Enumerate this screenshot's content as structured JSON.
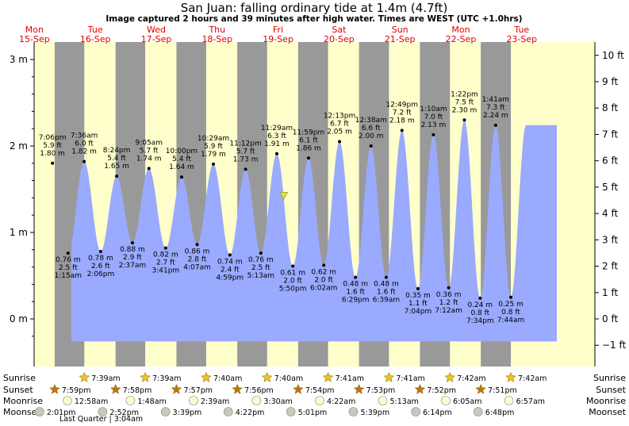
{
  "title": "San Juan: falling  ordinary tide at 1.4m (4.7ft)",
  "subtitle": "Image captured 2 hours and 39 minutes after high water. Times are WEST (UTC +1.0hrs)",
  "days": [
    {
      "dow": "Mon",
      "date": "15-Sep"
    },
    {
      "dow": "Tue",
      "date": "16-Sep"
    },
    {
      "dow": "Wed",
      "date": "17-Sep"
    },
    {
      "dow": "Thu",
      "date": "18-Sep"
    },
    {
      "dow": "Fri",
      "date": "19-Sep"
    },
    {
      "dow": "Sat",
      "date": "20-Sep"
    },
    {
      "dow": "Sun",
      "date": "21-Sep"
    },
    {
      "dow": "Mon",
      "date": "22-Sep"
    },
    {
      "dow": "Tue",
      "date": "23-Sep"
    }
  ],
  "colors": {
    "day_bg": "#ffffcc",
    "night_bg": "#999999",
    "water": "#99aaff",
    "day_label": "#e00000",
    "marker": "#e8e800"
  },
  "chart_data": {
    "type": "area",
    "x_unit": "hours since Mon 15-Sep 00:00 (WEST)",
    "left_axis": {
      "unit": "m",
      "ticks": [
        "3 m",
        "2 m",
        "1 m",
        "0 m"
      ],
      "tick_values": [
        3,
        2,
        1,
        0
      ],
      "ylim": [
        -0.28,
        3.06
      ]
    },
    "right_axis": {
      "unit": "ft",
      "ticks": [
        "10 ft",
        "9 ft",
        "8 ft",
        "7 ft",
        "6 ft",
        "5 ft",
        "4 ft",
        "3 ft",
        "2 ft",
        "1 ft",
        "0 ft",
        "−1 ft"
      ],
      "tick_values": [
        10,
        9,
        8,
        7,
        6,
        5,
        4,
        3,
        2,
        1,
        0,
        -1
      ]
    },
    "current_level_m": 1.4,
    "current_time_h": 110.2,
    "extremes": [
      {
        "type": "high",
        "time": "7:06 pm",
        "ft": "5.9 ft",
        "m": "1.80 m",
        "t": 19.1,
        "v": 1.8
      },
      {
        "type": "low",
        "time": "1:15 am",
        "ft": "2.5 ft",
        "m": "0.76 m",
        "t": 25.25,
        "v": 0.76
      },
      {
        "type": "high",
        "time": "7:36 am",
        "ft": "6.0 ft",
        "m": "1.82 m",
        "t": 31.6,
        "v": 1.82
      },
      {
        "type": "low",
        "time": "2:06 pm",
        "ft": "2.6 ft",
        "m": "0.78 m",
        "t": 38.1,
        "v": 0.78
      },
      {
        "type": "high",
        "time": "8:24 pm",
        "ft": "5.4 ft",
        "m": "1.65 m",
        "t": 44.4,
        "v": 1.65
      },
      {
        "type": "low",
        "time": "2:37 am",
        "ft": "2.9 ft",
        "m": "0.88 m",
        "t": 50.6,
        "v": 0.88
      },
      {
        "type": "high",
        "time": "9:05 am",
        "ft": "5.7 ft",
        "m": "1.74 m",
        "t": 57.1,
        "v": 1.74
      },
      {
        "type": "low",
        "time": "3:41 pm",
        "ft": "2.7 ft",
        "m": "0.82 m",
        "t": 63.7,
        "v": 0.82
      },
      {
        "type": "high",
        "time": "10:00 pm",
        "ft": "5.4 ft",
        "m": "1.64 m",
        "t": 70.0,
        "v": 1.64
      },
      {
        "type": "low",
        "time": "4:07 am",
        "ft": "2.8 ft",
        "m": "0.86 m",
        "t": 76.1,
        "v": 0.86
      },
      {
        "type": "high",
        "time": "10:29 am",
        "ft": "5.9 ft",
        "m": "1.79 m",
        "t": 82.5,
        "v": 1.79
      },
      {
        "type": "low",
        "time": "4:59 pm",
        "ft": "2.4 ft",
        "m": "0.74 m",
        "t": 89.0,
        "v": 0.74
      },
      {
        "type": "high",
        "time": "11:12 pm",
        "ft": "5.7 ft",
        "m": "1.73 m",
        "t": 95.2,
        "v": 1.73
      },
      {
        "type": "low",
        "time": "5:13 am",
        "ft": "2.5 ft",
        "m": "0.76 m",
        "t": 101.2,
        "v": 0.76
      },
      {
        "type": "high",
        "time": "11:29 am",
        "ft": "6.3 ft",
        "m": "1.91 m",
        "t": 107.5,
        "v": 1.91
      },
      {
        "type": "low",
        "time": "5:50 pm",
        "ft": "2.0 ft",
        "m": "0.61 m",
        "t": 113.8,
        "v": 0.61
      },
      {
        "type": "high",
        "time": "11:59 pm",
        "ft": "6.1 ft",
        "m": "1.86 m",
        "t": 120.0,
        "v": 1.86
      },
      {
        "type": "low",
        "time": "6:02 am",
        "ft": "2.0 ft",
        "m": "0.62 m",
        "t": 126.0,
        "v": 0.62
      },
      {
        "type": "high",
        "time": "12:13 pm",
        "ft": "6.7 ft",
        "m": "2.05 m",
        "t": 132.2,
        "v": 2.05
      },
      {
        "type": "low",
        "time": "6:29 pm",
        "ft": "1.6 ft",
        "m": "0.48 m",
        "t": 138.5,
        "v": 0.48
      },
      {
        "type": "high",
        "time": "12:38 am",
        "ft": "6.6 ft",
        "m": "2.00 m",
        "t": 144.6,
        "v": 2.0
      },
      {
        "type": "low",
        "time": "6:39 am",
        "ft": "1.6 ft",
        "m": "0.48 m",
        "t": 150.6,
        "v": 0.48
      },
      {
        "type": "high",
        "time": "12:49 pm",
        "ft": "7.2 ft",
        "m": "2.18 m",
        "t": 156.8,
        "v": 2.18
      },
      {
        "type": "low",
        "time": "7:04 pm",
        "ft": "1.1 ft",
        "m": "0.35 m",
        "t": 163.1,
        "v": 0.35
      },
      {
        "type": "high",
        "time": "1:10 am",
        "ft": "7.0 ft",
        "m": "2.13 m",
        "t": 169.2,
        "v": 2.13
      },
      {
        "type": "low",
        "time": "7:12 am",
        "ft": "1.2 ft",
        "m": "0.36 m",
        "t": 175.2,
        "v": 0.36
      },
      {
        "type": "high",
        "time": "1:22 pm",
        "ft": "7.5 ft",
        "m": "2.30 m",
        "t": 181.4,
        "v": 2.3
      },
      {
        "type": "low",
        "time": "7:34 pm",
        "ft": "0.8 ft",
        "m": "0.24 m",
        "t": 187.6,
        "v": 0.24
      },
      {
        "type": "high",
        "time": "1:41 am",
        "ft": "7.3 ft",
        "m": "2.24 m",
        "t": 193.7,
        "v": 2.24
      },
      {
        "type": "low",
        "time": "7:44 am",
        "ft": "0.8 ft",
        "m": "0.25 m",
        "t": 199.7,
        "v": 0.25
      }
    ]
  },
  "rows": {
    "sunrise": {
      "label": "Sunrise",
      "events": [
        {
          "t": 31.65,
          "text": "7:39am"
        },
        {
          "t": 55.65,
          "text": "7:39am"
        },
        {
          "t": 79.67,
          "text": "7:40am"
        },
        {
          "t": 103.67,
          "text": "7:40am"
        },
        {
          "t": 127.68,
          "text": "7:41am"
        },
        {
          "t": 151.68,
          "text": "7:41am"
        },
        {
          "t": 175.7,
          "text": "7:42am"
        },
        {
          "t": 199.7,
          "text": "7:42am"
        }
      ]
    },
    "sunset": {
      "label": "Sunset",
      "events": [
        {
          "t": 19.98,
          "text": "7:59pm"
        },
        {
          "t": 43.97,
          "text": "7:58pm"
        },
        {
          "t": 67.95,
          "text": "7:57pm"
        },
        {
          "t": 91.93,
          "text": "7:56pm"
        },
        {
          "t": 115.9,
          "text": "7:54pm"
        },
        {
          "t": 139.88,
          "text": "7:53pm"
        },
        {
          "t": 163.87,
          "text": "7:52pm"
        },
        {
          "t": 187.85,
          "text": "7:51pm"
        }
      ]
    },
    "moonrise": {
      "label": "Moonrise",
      "events": [
        {
          "t": 24.97,
          "text": "12:58am"
        },
        {
          "t": 49.8,
          "text": "1:48am"
        },
        {
          "t": 74.65,
          "text": "2:39am"
        },
        {
          "t": 99.5,
          "text": "3:30am"
        },
        {
          "t": 124.37,
          "text": "4:22am"
        },
        {
          "t": 149.22,
          "text": "5:13am"
        },
        {
          "t": 174.08,
          "text": "6:05am"
        },
        {
          "t": 198.95,
          "text": "6:57am"
        }
      ]
    },
    "moonset": {
      "label": "Moonset",
      "events": [
        {
          "t": 14.02,
          "text": "2:01pm"
        },
        {
          "t": 38.87,
          "text": "2:52pm"
        },
        {
          "t": 63.65,
          "text": "3:39pm"
        },
        {
          "t": 88.37,
          "text": "4:22pm"
        },
        {
          "t": 113.02,
          "text": "5:01pm"
        },
        {
          "t": 137.65,
          "text": "5:39pm"
        },
        {
          "t": 162.23,
          "text": "6:14pm"
        },
        {
          "t": 186.8,
          "text": "6:48pm"
        }
      ]
    }
  },
  "moon_phase_note": "Last Quarter | 3:04am"
}
